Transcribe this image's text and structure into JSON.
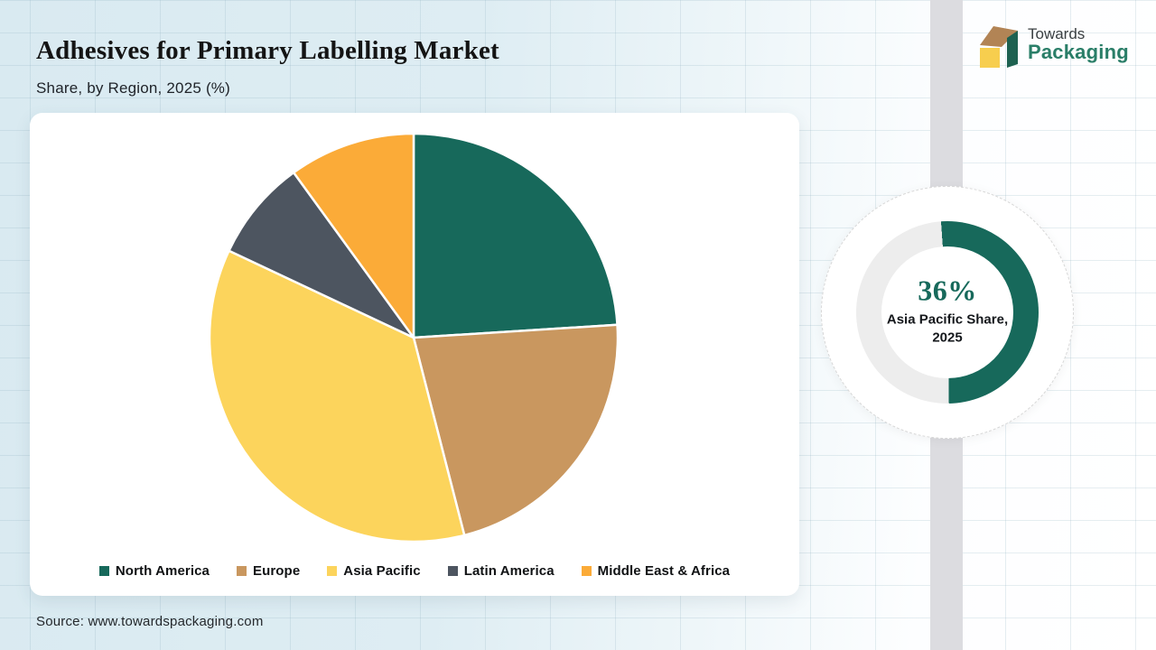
{
  "header": {
    "title": "Adhesives for Primary Labelling Market",
    "subtitle": "Share, by Region, 2025 (%)"
  },
  "brand": {
    "name_line1": "Towards",
    "name_line2": "Packaging",
    "text_color": "#2A7E68",
    "cube_top_color": "#B28455",
    "cube_front_color": "#F7CE4E",
    "cube_side_color": "#1D6150"
  },
  "chart_data": {
    "type": "pie",
    "title": "Adhesives for Primary Labelling Market",
    "subtitle": "Share, by Region, 2025 (%)",
    "unit": "%",
    "categories": [
      "North America",
      "Europe",
      "Asia Pacific",
      "Latin America",
      "Middle East & Africa"
    ],
    "values": [
      24,
      22,
      36,
      8,
      10
    ],
    "colors": [
      "#17695B",
      "#C9975F",
      "#FCD45C",
      "#4D5560",
      "#FBAB38"
    ],
    "legend_position": "bottom",
    "start_angle": "top",
    "direction": "clockwise"
  },
  "gauge": {
    "value": "36%",
    "label_line1": "Asia Pacific Share,",
    "label_line2": "2025",
    "arc_color": "#17695B",
    "track_color": "#EDEDED",
    "value_color": "#17695B"
  },
  "source": {
    "text": "Source: www.towardspackaging.com"
  }
}
